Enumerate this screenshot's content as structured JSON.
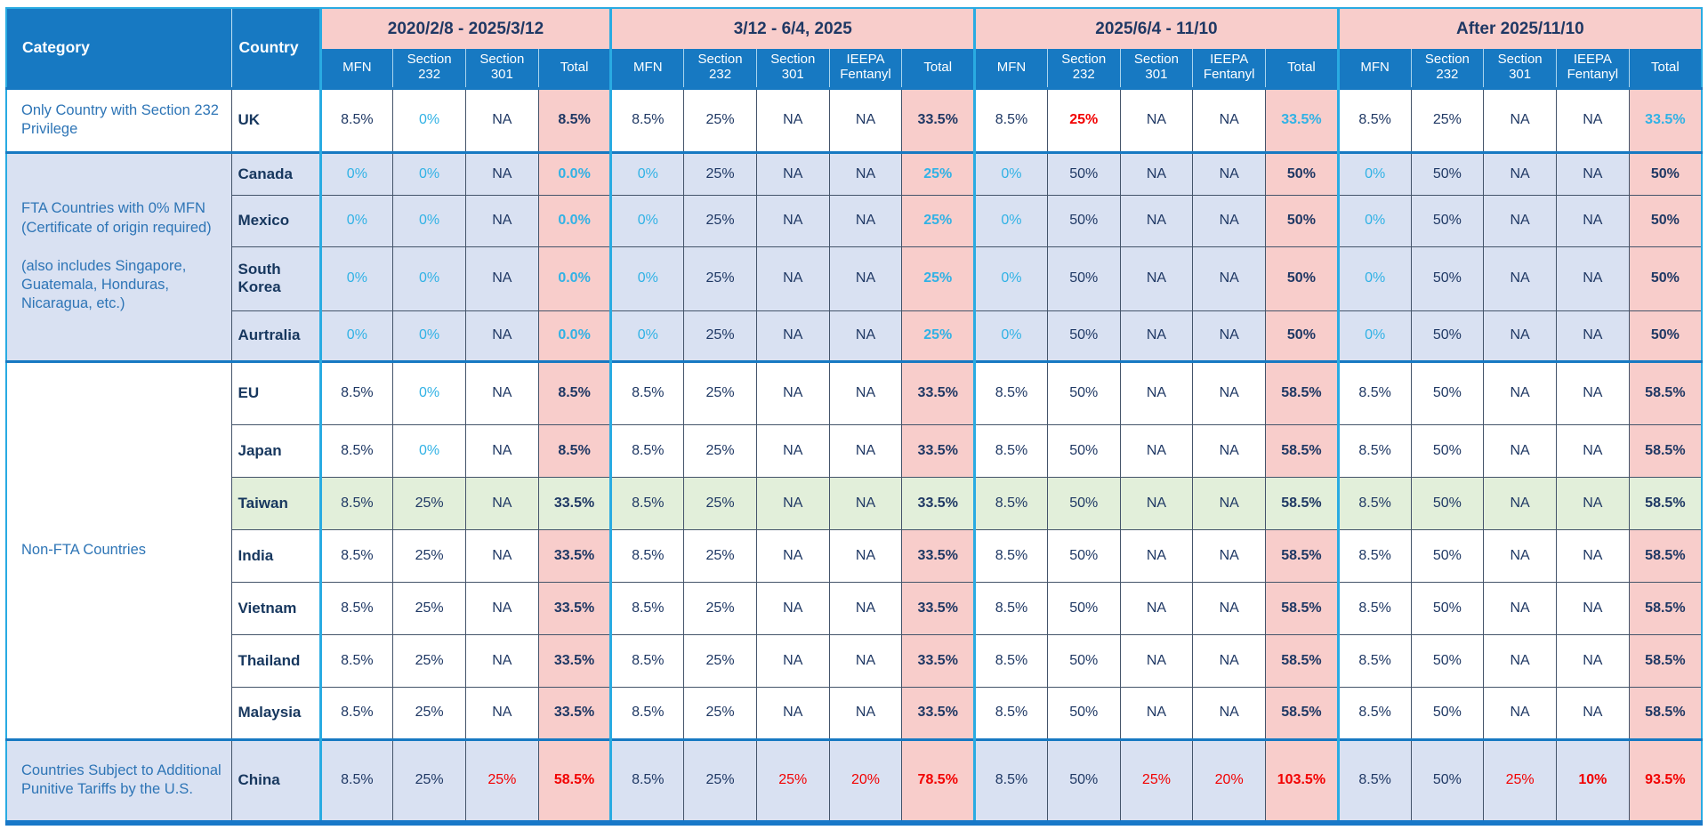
{
  "table": {
    "corner": {
      "category": "Category",
      "country": "Country"
    },
    "groups": [
      {
        "label": "2020/2/8 - 2025/3/12",
        "columns": [
          "MFN",
          "Section 232",
          "Section 301",
          "Total"
        ]
      },
      {
        "label": "3/12 - 6/4, 2025",
        "columns": [
          "MFN",
          "Section 232",
          "Section 301",
          "IEEPA Fentanyl",
          "Total"
        ]
      },
      {
        "label": "2025/6/4 - 11/10",
        "columns": [
          "MFN",
          "Section 232",
          "Section 301",
          "IEEPA Fentanyl",
          "Total"
        ]
      },
      {
        "label": "After 2025/11/10",
        "columns": [
          "MFN",
          "Section 232",
          "Section 301",
          "IEEPA Fentanyl",
          "Total"
        ]
      }
    ],
    "cell_flag_legend": "c=cyan text, r=red text, b=bold, p=pink highlight background",
    "categories": [
      {
        "label": [
          "Only Country with Section 232 Privilege"
        ],
        "bg": "",
        "rows": [
          {
            "country": "UK",
            "bg": "",
            "cells": [
              "8.5%|",
              "0%|c",
              "NA|",
              "8.5%|bp",
              "8.5%|",
              "25%|",
              "NA|",
              "NA|",
              "33.5%|bp",
              "8.5%|",
              "25%|rb",
              "NA|",
              "NA|",
              "33.5%|cbp",
              "8.5%|",
              "25%|",
              "NA|",
              "NA|",
              "33.5%|cbp"
            ]
          }
        ]
      },
      {
        "label": [
          "FTA Countries with 0% MFN (Certificate of origin required)",
          "(also includes Singapore, Guatemala, Honduras, Nicaragua, etc.)"
        ],
        "bg": "lav",
        "rows": [
          {
            "country": "Canada",
            "bg": "lav",
            "cells": [
              "0%|c",
              "0%|c",
              "NA|",
              "0.0%|cbp",
              "0%|c",
              "25%|",
              "NA|",
              "NA|",
              "25%|cbp",
              "0%|c",
              "50%|",
              "NA|",
              "NA|",
              "50%|bp",
              "0%|c",
              "50%|",
              "NA|",
              "NA|",
              "50%|bp"
            ]
          },
          {
            "country": "Mexico",
            "bg": "lav",
            "cells": [
              "0%|c",
              "0%|c",
              "NA|",
              "0.0%|cbp",
              "0%|c",
              "25%|",
              "NA|",
              "NA|",
              "25%|cbp",
              "0%|c",
              "50%|",
              "NA|",
              "NA|",
              "50%|bp",
              "0%|c",
              "50%|",
              "NA|",
              "NA|",
              "50%|bp"
            ]
          },
          {
            "country": "South Korea",
            "bg": "lav",
            "cells": [
              "0%|c",
              "0%|c",
              "NA|",
              "0.0%|cbp",
              "0%|c",
              "25%|",
              "NA|",
              "NA|",
              "25%|cbp",
              "0%|c",
              "50%|",
              "NA|",
              "NA|",
              "50%|bp",
              "0%|c",
              "50%|",
              "NA|",
              "NA|",
              "50%|bp"
            ]
          },
          {
            "country": "Aurtralia",
            "bg": "lav",
            "cells": [
              "0%|c",
              "0%|c",
              "NA|",
              "0.0%|cbp",
              "0%|c",
              "25%|",
              "NA|",
              "NA|",
              "25%|cbp",
              "0%|c",
              "50%|",
              "NA|",
              "NA|",
              "50%|bp",
              "0%|c",
              "50%|",
              "NA|",
              "NA|",
              "50%|bp"
            ]
          }
        ]
      },
      {
        "label": [
          "Non-FTA Countries"
        ],
        "bg": "",
        "rows": [
          {
            "country": "EU",
            "bg": "",
            "cells": [
              "8.5%|",
              "0%|c",
              "NA|",
              "8.5%|bp",
              "8.5%|",
              "25%|",
              "NA|",
              "NA|",
              "33.5%|bp",
              "8.5%|",
              "50%|",
              "NA|",
              "NA|",
              "58.5%|bp",
              "8.5%|",
              "50%|",
              "NA|",
              "NA|",
              "58.5%|bp"
            ]
          },
          {
            "country": "Japan",
            "bg": "",
            "cells": [
              "8.5%|",
              "0%|c",
              "NA|",
              "8.5%|bp",
              "8.5%|",
              "25%|",
              "NA|",
              "NA|",
              "33.5%|bp",
              "8.5%|",
              "50%|",
              "NA|",
              "NA|",
              "58.5%|bp",
              "8.5%|",
              "50%|",
              "NA|",
              "NA|",
              "58.5%|bp"
            ]
          },
          {
            "country": "Taiwan",
            "bg": "green",
            "cells": [
              "8.5%|",
              "25%|",
              "NA|",
              "33.5%|b",
              "8.5%|",
              "25%|",
              "NA|",
              "NA|",
              "33.5%|b",
              "8.5%|",
              "50%|",
              "NA|",
              "NA|",
              "58.5%|b",
              "8.5%|",
              "50%|",
              "NA|",
              "NA|",
              "58.5%|b"
            ]
          },
          {
            "country": "India",
            "bg": "",
            "cells": [
              "8.5%|",
              "25%|",
              "NA|",
              "33.5%|bp",
              "8.5%|",
              "25%|",
              "NA|",
              "NA|",
              "33.5%|bp",
              "8.5%|",
              "50%|",
              "NA|",
              "NA|",
              "58.5%|bp",
              "8.5%|",
              "50%|",
              "NA|",
              "NA|",
              "58.5%|bp"
            ]
          },
          {
            "country": "Vietnam",
            "bg": "",
            "cells": [
              "8.5%|",
              "25%|",
              "NA|",
              "33.5%|bp",
              "8.5%|",
              "25%|",
              "NA|",
              "NA|",
              "33.5%|bp",
              "8.5%|",
              "50%|",
              "NA|",
              "NA|",
              "58.5%|bp",
              "8.5%|",
              "50%|",
              "NA|",
              "NA|",
              "58.5%|bp"
            ]
          },
          {
            "country": "Thailand",
            "bg": "",
            "cells": [
              "8.5%|",
              "25%|",
              "NA|",
              "33.5%|bp",
              "8.5%|",
              "25%|",
              "NA|",
              "NA|",
              "33.5%|bp",
              "8.5%|",
              "50%|",
              "NA|",
              "NA|",
              "58.5%|bp",
              "8.5%|",
              "50%|",
              "NA|",
              "NA|",
              "58.5%|bp"
            ]
          },
          {
            "country": "Malaysia",
            "bg": "",
            "cells": [
              "8.5%|",
              "25%|",
              "NA|",
              "33.5%|bp",
              "8.5%|",
              "25%|",
              "NA|",
              "NA|",
              "33.5%|bp",
              "8.5%|",
              "50%|",
              "NA|",
              "NA|",
              "58.5%|bp",
              "8.5%|",
              "50%|",
              "NA|",
              "NA|",
              "58.5%|bp"
            ]
          }
        ]
      },
      {
        "label": [
          "Countries Subject to Additional Punitive Tariffs by the U.S."
        ],
        "bg": "lav",
        "rows": [
          {
            "country": "China",
            "bg": "lav",
            "cells": [
              "8.5%|",
              "25%|",
              "25%|r",
              "58.5%|rbp",
              "8.5%|",
              "25%|",
              "25%|r",
              "20%|r",
              "78.5%|rbp",
              "8.5%|",
              "50%|",
              "25%|r",
              "20%|r",
              "103.5%|rbp",
              "8.5%|",
              "50%|",
              "25%|r",
              "10%|rb",
              "93.5%|rbp"
            ]
          }
        ]
      }
    ]
  },
  "colors": {
    "header_blue": "#1779C2",
    "period_pink": "#F8CDCB",
    "row_lavender": "#D9E1F2",
    "row_green": "#E2EFDA",
    "text_navy": "#1F3864",
    "text_cyan": "#31B2E5",
    "text_red": "#F20000",
    "category_text_blue": "#2E75B6",
    "border_cyan": "#29ABE2",
    "border_dark": "#44546A",
    "divider_blue": "#1779C2"
  }
}
